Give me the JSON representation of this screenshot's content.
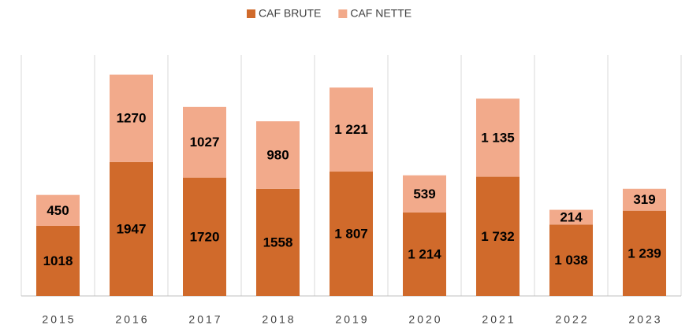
{
  "chart_data": {
    "type": "stacked_bar",
    "categories": [
      "2015",
      "2016",
      "2017",
      "2018",
      "2019",
      "2020",
      "2021",
      "2022",
      "2023"
    ],
    "series": [
      {
        "name": "CAF BRUTE",
        "color": "#d06a2b",
        "values": [
          1018,
          1947,
          1720,
          1558,
          1807,
          1214,
          1732,
          1038,
          1239
        ],
        "value_labels": [
          "1018",
          "1947",
          "1720",
          "1558",
          "1 807",
          "1 214",
          "1 732",
          "1 038",
          "1 239"
        ]
      },
      {
        "name": "CAF NETTE",
        "color": "#f2aa8b",
        "values": [
          450,
          1270,
          1027,
          980,
          1221,
          539,
          1135,
          214,
          319
        ],
        "value_labels": [
          "450",
          "1270",
          "1027",
          "980",
          "1 221",
          "539",
          "1 135",
          "214",
          "319"
        ]
      }
    ],
    "ylim": [
      0,
      3500
    ],
    "legend": "top"
  }
}
